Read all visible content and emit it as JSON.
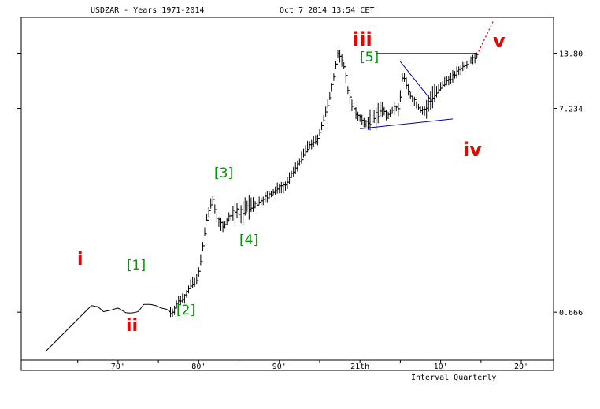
{
  "header": {
    "symbol_title": "USDZAR - Years 1971-2014",
    "timestamp": "Oct 7 2014 13:54 CET"
  },
  "footer": {
    "interval": "Interval Quarterly"
  },
  "colors": {
    "price": "#000000",
    "wave_major": "#ee0000",
    "wave_minor": "#009900",
    "resistance": "#cc00cc",
    "triangle": "#0000aa",
    "projection": "#ee0000",
    "grid": "#000000"
  },
  "chart_data": {
    "type": "line",
    "style": "ohlc-bars",
    "scale": "log",
    "x_tick_labels": [
      "70'",
      "80'",
      "90'",
      "21th",
      "10'",
      "20'"
    ],
    "x_tick_years": [
      1970,
      1980,
      1990,
      2000,
      2010,
      2020
    ],
    "xlim": [
      1958,
      2024
    ],
    "y_tick_labels": [
      "13.80",
      "7.234",
      "0.666"
    ],
    "y_tick_values": [
      13.8,
      7.234,
      0.666
    ],
    "ylim": [
      0.38,
      21
    ],
    "series": [
      {
        "x": [
          1961.0,
          1966.7,
          1967.5,
          1968.2,
          1969.0,
          1970.0,
          1971.0,
          1971.8,
          1972.5,
          1973.2,
          1974.0,
          1974.7,
          1975.3,
          1976.0,
          1976.7,
          1977.5,
          1978.3,
          1979.0,
          1979.7,
          1980.3,
          1981.0,
          1981.7,
          1982.3,
          1983.0,
          1983.7,
          1984.3,
          1985.0,
          1985.4,
          1986.0,
          1986.7,
          1987.3,
          1988.0,
          1988.7,
          1989.3,
          1990.0,
          1990.7,
          1991.3,
          1992.0,
          1992.7,
          1993.3,
          1994.0,
          1994.7,
          1995.3,
          1996.0,
          1996.7,
          1997.3,
          1998.0,
          1998.5,
          1999.0,
          1999.5,
          2000.0,
          2000.5,
          2001.0,
          2001.5,
          2001.9,
          2002.3,
          2002.8,
          2003.3,
          2003.8,
          2004.3,
          2004.8,
          2005.3,
          2005.8,
          2006.3,
          2006.8,
          2007.3,
          2007.8,
          2008.3,
          2008.6,
          2009.0,
          2009.5,
          2010.0,
          2010.5,
          2011.0,
          2011.5,
          2012.0,
          2012.5,
          2013.0,
          2013.5,
          2014.0,
          2014.7
        ],
        "y": [
          0.42,
          0.72,
          0.71,
          0.67,
          0.68,
          0.7,
          0.66,
          0.66,
          0.67,
          0.73,
          0.73,
          0.72,
          0.7,
          0.69,
          0.66,
          0.76,
          0.8,
          0.92,
          0.95,
          1.25,
          2.0,
          2.5,
          2.0,
          1.8,
          2.0,
          2.1,
          2.2,
          2.15,
          2.3,
          2.3,
          2.4,
          2.5,
          2.6,
          2.7,
          2.9,
          2.9,
          3.2,
          3.6,
          4.0,
          4.5,
          4.8,
          5.0,
          6.0,
          7.5,
          10.3,
          14.0,
          12.0,
          9.0,
          7.5,
          6.8,
          6.5,
          6.1,
          6.1,
          6.4,
          6.6,
          6.9,
          7.2,
          6.6,
          7.0,
          7.3,
          7.1,
          11.0,
          9.5,
          8.3,
          7.8,
          7.3,
          7.0,
          7.1,
          7.9,
          8.5,
          8.8,
          9.2,
          9.8,
          10.2,
          10.5,
          11.0,
          11.5,
          12.0,
          12.5,
          13.0,
          13.6
        ]
      }
    ],
    "wave_labels_major": [
      "i",
      "ii",
      "iii",
      "iv",
      "v"
    ],
    "wave_labels_minor": [
      "[1]",
      "[2]",
      "[3]",
      "[4]",
      "[5]"
    ],
    "annotations": {
      "resistance_line": {
        "x": [
          2002.0,
          2014.5
        ],
        "y": 13.8
      },
      "triangle_upper": {
        "x": [
          2005.0,
          2009.0
        ],
        "y": [
          12.5,
          7.8
        ]
      },
      "triangle_lower": {
        "x": [
          2000.0,
          2011.5
        ],
        "y": [
          5.7,
          6.4
        ]
      },
      "projection_v": {
        "x": [
          2014.5,
          2016.5
        ],
        "y": [
          13.5,
          20.0
        ]
      }
    }
  }
}
